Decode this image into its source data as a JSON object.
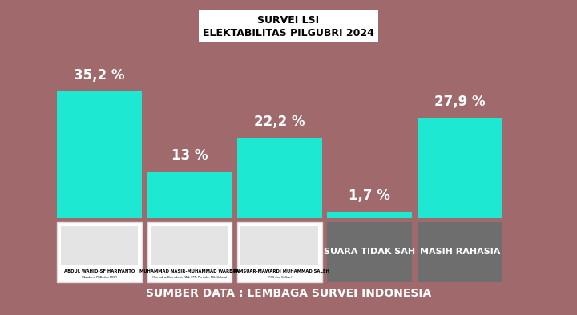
{
  "chart_data": {
    "type": "bar",
    "title": "SURVEI LSI\nELEKTABILITAS PILGUBRI 2024",
    "categories": [
      "ABDUL WAHID-SF HARIYANTO",
      "MUHAMMAD NASIR-MUHAMMAD WARDAN",
      "SYAMSUAR-MAWARDI MUHAMMAD SALEH",
      "SUARA TIDAK SAH",
      "MASIH RAHASIA"
    ],
    "category_subtitles": [
      "(Nasdem, PKB, dan PDIP)",
      "(Gerindra, Demokrat, PAN, PPP, Perindo, PSI, Gelora)",
      "(PKS dan Golkar)",
      null,
      null
    ],
    "values": [
      35.2,
      13,
      22.2,
      1.7,
      27.9
    ],
    "value_labels": [
      "35,2 %",
      "13 %",
      "22,2 %",
      "1,7 %",
      "27,9 %"
    ],
    "data_labels": true,
    "color": "#1de9d2",
    "ylim": [
      0,
      44
    ],
    "tick_labels": false,
    "grid": false,
    "source": "SUMBER DATA : LEMBAGA SURVEI INDONESIA"
  }
}
